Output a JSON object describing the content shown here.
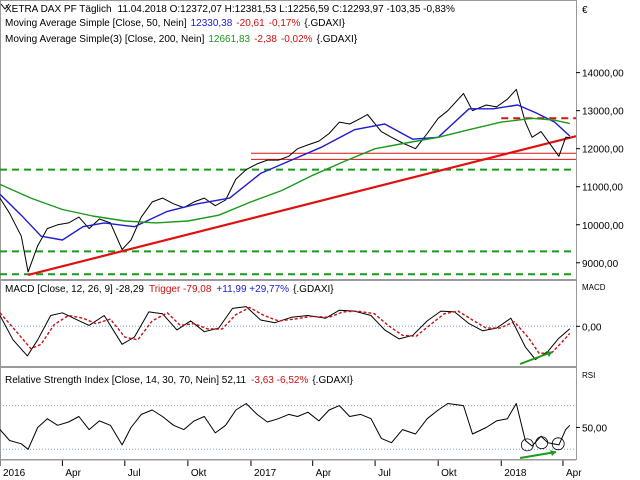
{
  "chart_data": [
    {
      "type": "line",
      "panel": "price",
      "title": "XETRA DAX PF Täglich",
      "header_values": "11.04.2018  O:12372,07 H:12381,53 L:12256,59 C:12293,97 -103,35 -0,83%",
      "currency_symbol": "€",
      "ylim": [
        8600,
        14700
      ],
      "yticks": [
        "9000,00",
        "10000,00",
        "11000,00",
        "12000,00",
        "13000,00",
        "14000,00"
      ],
      "ytick_values": [
        9000,
        10000,
        11000,
        12000,
        13000,
        14000
      ],
      "x_tick_labels": [
        "2016",
        "Apr",
        "Jul",
        "Okt",
        "2017",
        "Apr",
        "Jul",
        "Okt",
        "2018",
        "Apr"
      ],
      "x_range": [
        "2016-01-01",
        "2018-04-20"
      ],
      "legend": [
        {
          "name": "Moving Average Simple [Close, 50, Nein]",
          "value": "12330,38",
          "change": "-20,61",
          "pct": "-0,17%",
          "suffix": "{.GDAXI}",
          "color": "#1c1ccf"
        },
        {
          "name": "Moving Average Simple(3) [Close, 200, Nein]",
          "value": "12661,83",
          "change": "-2,38",
          "pct": "-0,02%",
          "suffix": "{.GDAXI}",
          "color": "#1a9a1a"
        }
      ],
      "series": [
        {
          "name": "XETRA DAX PF",
          "color": "#000000",
          "x": [
            "2016-01-01",
            "2016-01-15",
            "2016-02-01",
            "2016-02-11",
            "2016-02-25",
            "2016-03-10",
            "2016-03-25",
            "2016-04-10",
            "2016-04-25",
            "2016-05-10",
            "2016-05-25",
            "2016-06-10",
            "2016-06-27",
            "2016-07-10",
            "2016-07-25",
            "2016-08-10",
            "2016-08-25",
            "2016-09-10",
            "2016-09-25",
            "2016-10-10",
            "2016-10-25",
            "2016-11-10",
            "2016-11-25",
            "2016-12-10",
            "2016-12-25",
            "2017-01-10",
            "2017-01-25",
            "2017-02-10",
            "2017-02-25",
            "2017-03-10",
            "2017-03-25",
            "2017-04-10",
            "2017-04-25",
            "2017-05-10",
            "2017-05-25",
            "2017-06-10",
            "2017-06-20",
            "2017-07-10",
            "2017-07-25",
            "2017-08-10",
            "2017-08-29",
            "2017-09-15",
            "2017-10-01",
            "2017-10-15",
            "2017-11-07",
            "2017-11-20",
            "2017-12-10",
            "2017-12-25",
            "2018-01-10",
            "2018-01-23",
            "2018-02-05",
            "2018-02-15",
            "2018-02-28",
            "2018-03-10",
            "2018-03-26",
            "2018-04-05",
            "2018-04-11"
          ],
          "values": [
            10700,
            10300,
            9700,
            8760,
            9450,
            9900,
            10000,
            10050,
            10200,
            9900,
            10150,
            10050,
            9350,
            9600,
            10200,
            10600,
            10700,
            10550,
            10450,
            10600,
            10700,
            10500,
            10650,
            11200,
            11450,
            11600,
            11700,
            11700,
            11800,
            12000,
            12100,
            12200,
            12400,
            12700,
            12650,
            12800,
            12900,
            12450,
            12300,
            12150,
            12000,
            12400,
            12800,
            13000,
            13450,
            13000,
            13150,
            13100,
            13300,
            13560,
            12700,
            12300,
            12450,
            12200,
            11800,
            12300,
            12294
          ]
        },
        {
          "name": "MA 50",
          "color": "#1c1ccf",
          "x": [
            "2016-01-01",
            "2016-02-01",
            "2016-03-01",
            "2016-04-01",
            "2016-05-01",
            "2016-06-01",
            "2016-07-15",
            "2016-09-01",
            "2016-10-15",
            "2016-12-01",
            "2017-01-15",
            "2017-03-01",
            "2017-04-15",
            "2017-06-01",
            "2017-07-15",
            "2017-08-25",
            "2017-10-01",
            "2017-11-15",
            "2017-12-20",
            "2018-01-25",
            "2018-02-20",
            "2018-03-20",
            "2018-04-11"
          ],
          "values": [
            10800,
            10250,
            9700,
            9600,
            9950,
            10050,
            9950,
            10350,
            10550,
            10700,
            11350,
            11700,
            12050,
            12500,
            12650,
            12250,
            12300,
            13050,
            13050,
            13150,
            12950,
            12700,
            12330
          ]
        },
        {
          "name": "MA 200",
          "color": "#1a9a1a",
          "x": [
            "2016-01-01",
            "2016-02-15",
            "2016-04-01",
            "2016-05-15",
            "2016-07-01",
            "2016-08-15",
            "2016-10-01",
            "2016-11-15",
            "2017-01-01",
            "2017-02-15",
            "2017-04-01",
            "2017-05-15",
            "2017-07-01",
            "2017-08-15",
            "2017-10-01",
            "2017-11-15",
            "2018-01-01",
            "2018-02-15",
            "2018-03-20",
            "2018-04-11"
          ],
          "values": [
            11060,
            10700,
            10400,
            10230,
            10100,
            10050,
            10100,
            10250,
            10600,
            10900,
            11300,
            11650,
            12000,
            12150,
            12300,
            12500,
            12700,
            12800,
            12750,
            12660
          ]
        }
      ],
      "trendline": {
        "color": "#e01010",
        "points": [
          {
            "x": "2016-02-11",
            "y": 8680
          },
          {
            "x": "2018-04-20",
            "y": 12330
          }
        ]
      },
      "horizontal_lines": [
        {
          "y": 12800,
          "style": "dashed",
          "color": "#e01010",
          "from": "2018-01-01"
        },
        {
          "y": 11880,
          "style": "solid",
          "color": "#e01010",
          "from": "2017-01-01"
        },
        {
          "y": 11720,
          "style": "solid",
          "color": "#e01010",
          "from": "2017-01-01"
        },
        {
          "y": 11450,
          "style": "dashed",
          "color": "#1a9a1a"
        },
        {
          "y": 9300,
          "style": "dashed",
          "color": "#1a9a1a"
        },
        {
          "y": 8700,
          "style": "dashed",
          "color": "#1a9a1a"
        }
      ]
    },
    {
      "type": "line",
      "panel": "macd",
      "panel_label": "MACD",
      "legend_text": "MACD [Close, 12, 26, 9]  -28,29",
      "trigger_text": "Trigger  -79,08",
      "change_text": "+11,99  +29,77%",
      "suffix": "{.GDAXI}",
      "ylim": [
        -420,
        360
      ],
      "yticks": [
        "0,00"
      ],
      "ytick_values": [
        0
      ],
      "series": [
        {
          "name": "MACD",
          "color": "#000000",
          "x": [
            "2016-01-01",
            "2016-01-20",
            "2016-02-10",
            "2016-02-25",
            "2016-03-15",
            "2016-04-01",
            "2016-04-20",
            "2016-05-10",
            "2016-06-01",
            "2016-06-27",
            "2016-07-15",
            "2016-08-05",
            "2016-08-25",
            "2016-09-15",
            "2016-10-05",
            "2016-10-25",
            "2016-11-15",
            "2016-12-05",
            "2016-12-25",
            "2017-01-15",
            "2017-02-05",
            "2017-03-01",
            "2017-03-25",
            "2017-04-20",
            "2017-05-10",
            "2017-06-01",
            "2017-06-25",
            "2017-07-15",
            "2017-08-05",
            "2017-08-25",
            "2017-09-15",
            "2017-10-05",
            "2017-10-25",
            "2017-11-15",
            "2017-12-05",
            "2017-12-25",
            "2018-01-15",
            "2018-02-05",
            "2018-02-20",
            "2018-03-10",
            "2018-03-25",
            "2018-04-11"
          ],
          "values": [
            120,
            -150,
            -330,
            -150,
            120,
            150,
            80,
            10,
            120,
            -200,
            -120,
            160,
            140,
            -40,
            60,
            -60,
            -20,
            200,
            220,
            70,
            40,
            100,
            120,
            90,
            180,
            170,
            120,
            -40,
            -140,
            -100,
            60,
            170,
            160,
            30,
            -50,
            -20,
            90,
            -230,
            -370,
            -280,
            -140,
            -28
          ]
        },
        {
          "name": "Trigger",
          "color": "#c81010",
          "dashed": true,
          "x": [
            "2016-01-01",
            "2016-01-25",
            "2016-02-15",
            "2016-03-01",
            "2016-03-20",
            "2016-04-10",
            "2016-05-01",
            "2016-05-20",
            "2016-06-10",
            "2016-07-01",
            "2016-07-20",
            "2016-08-10",
            "2016-09-01",
            "2016-09-20",
            "2016-10-10",
            "2016-10-30",
            "2016-11-20",
            "2016-12-10",
            "2016-12-30",
            "2017-01-20",
            "2017-02-10",
            "2017-03-05",
            "2017-03-30",
            "2017-04-25",
            "2017-05-15",
            "2017-06-05",
            "2017-06-30",
            "2017-07-20",
            "2017-08-10",
            "2017-08-30",
            "2017-09-20",
            "2017-10-10",
            "2017-10-30",
            "2017-11-20",
            "2017-12-10",
            "2017-12-30",
            "2018-01-20",
            "2018-02-10",
            "2018-02-25",
            "2018-03-15",
            "2018-03-30",
            "2018-04-11"
          ],
          "values": [
            150,
            -60,
            -250,
            -200,
            20,
            120,
            90,
            30,
            80,
            -120,
            -150,
            60,
            150,
            10,
            30,
            -30,
            -30,
            130,
            210,
            120,
            60,
            80,
            110,
            100,
            160,
            170,
            140,
            10,
            -100,
            -110,
            20,
            140,
            170,
            70,
            -20,
            -20,
            50,
            -130,
            -300,
            -300,
            -180,
            -79
          ]
        }
      ]
    },
    {
      "type": "line",
      "panel": "rsi",
      "panel_label": "RSI",
      "legend_text": "Relative Strength Index [Close, 14, 30, 70, Nein]  52,11",
      "change_text": "-3,63  -6,52%",
      "suffix": "{.GDAXI}",
      "ylim": [
        22,
        88
      ],
      "yticks": [
        "50,00"
      ],
      "ytick_values": [
        50
      ],
      "reference_lines": [
        70,
        30
      ],
      "series": [
        {
          "name": "RSI",
          "color": "#000000",
          "x": [
            "2016-01-01",
            "2016-01-15",
            "2016-02-01",
            "2016-02-11",
            "2016-02-25",
            "2016-03-10",
            "2016-03-25",
            "2016-04-10",
            "2016-04-25",
            "2016-05-10",
            "2016-05-25",
            "2016-06-10",
            "2016-06-27",
            "2016-07-10",
            "2016-07-25",
            "2016-08-10",
            "2016-08-25",
            "2016-09-10",
            "2016-09-25",
            "2016-10-10",
            "2016-10-25",
            "2016-11-10",
            "2016-11-25",
            "2016-12-10",
            "2016-12-25",
            "2017-01-10",
            "2017-01-25",
            "2017-02-10",
            "2017-02-25",
            "2017-03-10",
            "2017-03-25",
            "2017-04-10",
            "2017-04-25",
            "2017-05-10",
            "2017-05-25",
            "2017-06-10",
            "2017-06-25",
            "2017-07-10",
            "2017-07-25",
            "2017-08-10",
            "2017-08-29",
            "2017-09-15",
            "2017-10-01",
            "2017-10-15",
            "2017-11-07",
            "2017-11-20",
            "2017-12-10",
            "2017-12-25",
            "2018-01-10",
            "2018-01-23",
            "2018-02-05",
            "2018-02-15",
            "2018-02-28",
            "2018-03-10",
            "2018-03-26",
            "2018-04-05",
            "2018-04-11"
          ],
          "values": [
            48,
            38,
            35,
            30,
            50,
            58,
            52,
            55,
            60,
            48,
            56,
            52,
            34,
            50,
            62,
            66,
            60,
            52,
            48,
            56,
            60,
            45,
            52,
            66,
            72,
            62,
            55,
            58,
            62,
            60,
            64,
            56,
            66,
            70,
            60,
            62,
            58,
            40,
            36,
            48,
            44,
            58,
            66,
            72,
            70,
            44,
            50,
            56,
            58,
            72,
            38,
            33,
            42,
            36,
            34,
            48,
            52
          ]
        }
      ],
      "annotations": [
        {
          "shape": "circle",
          "x": "2018-02-08",
          "y": 34
        },
        {
          "shape": "circle",
          "x": "2018-03-01",
          "y": 36
        },
        {
          "shape": "circle",
          "x": "2018-03-25",
          "y": 35
        }
      ]
    }
  ]
}
